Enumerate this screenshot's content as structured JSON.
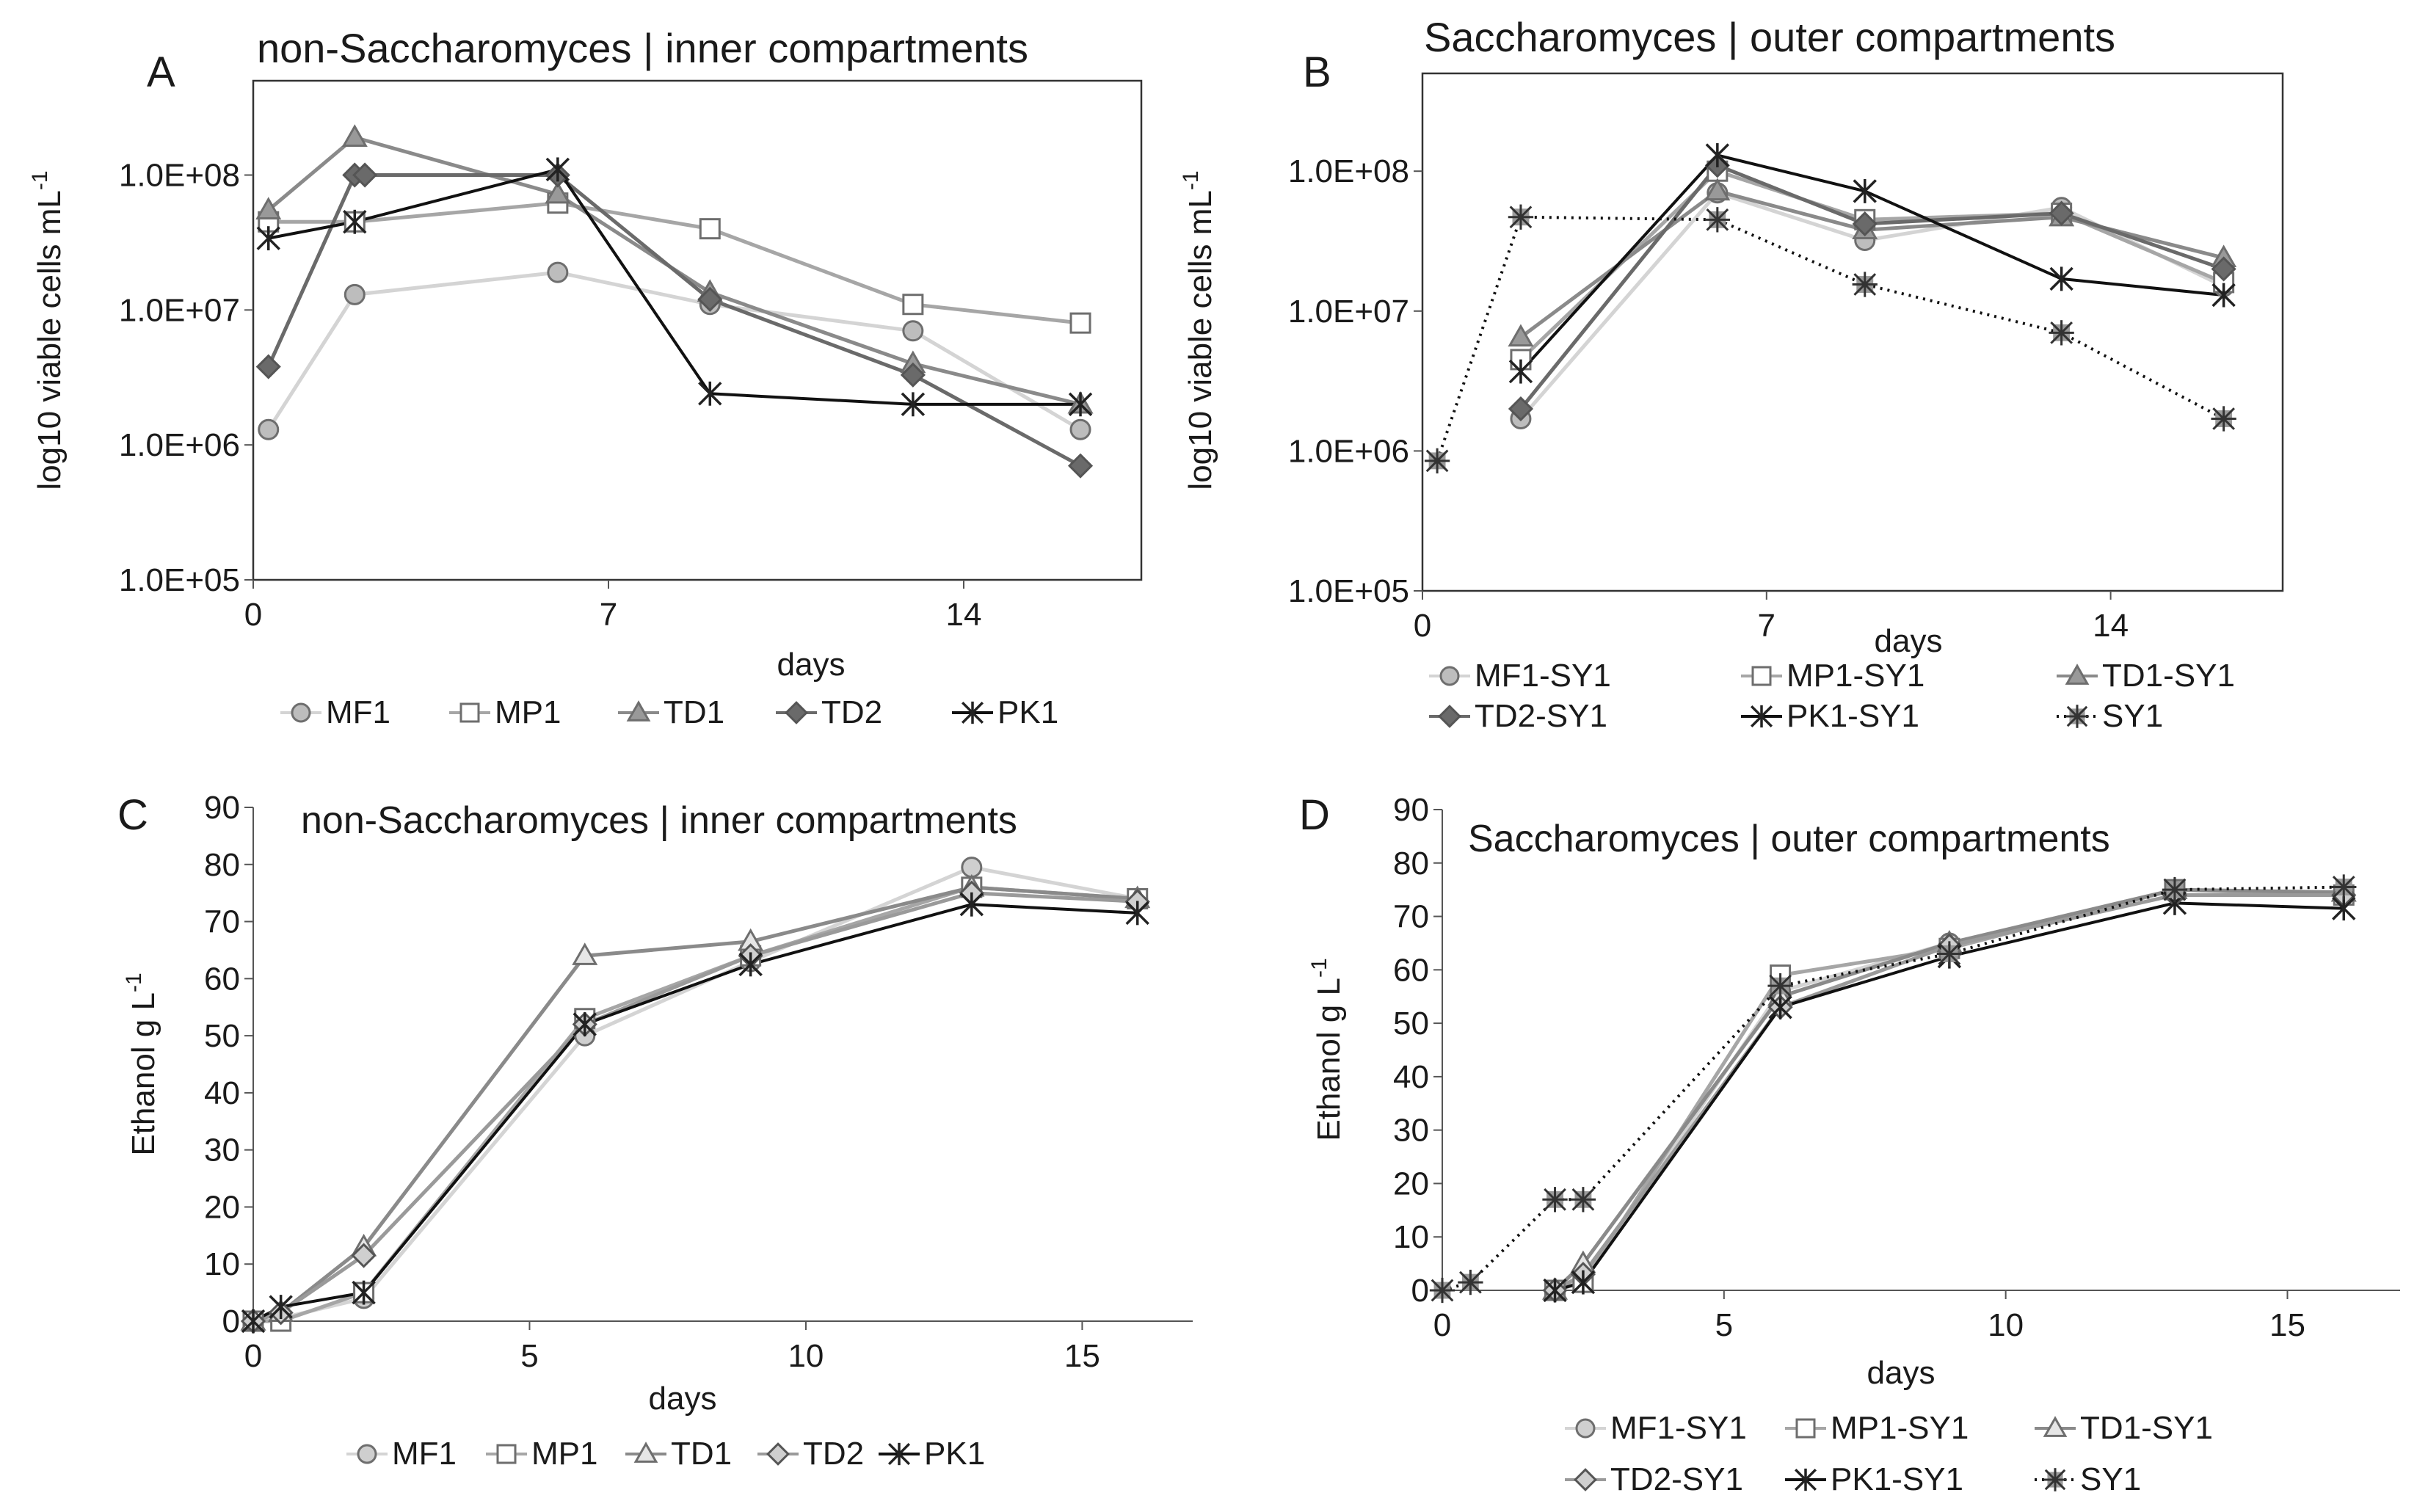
{
  "chart_data": [
    {
      "panel": "A",
      "type": "line",
      "scale": "log",
      "title": "non-Saccharomyces | inner compartments",
      "xlabel": "days",
      "ylabel_main": "log10 viable cells mL",
      "ylabel_sup": "-1",
      "xlim": [
        0,
        17.5
      ],
      "xticks": [
        0,
        7,
        14
      ],
      "ylim": [
        100000,
        500000000
      ],
      "yticks": [
        100000,
        1000000,
        10000000,
        100000000
      ],
      "ytick_labels": [
        "1.0E+05",
        "1.0E+06",
        "1.0E+07",
        "1.0E+08"
      ],
      "legend_cols": 5,
      "series": [
        {
          "name": "MF1",
          "marker": "circle",
          "line": "#d4d4d4",
          "fill": "#bdbdbd",
          "dash": "",
          "x": [
            0.3,
            2,
            6,
            9,
            13,
            16.3
          ],
          "y": [
            1300000,
            13000000,
            19000000,
            11000000,
            7000000,
            1300000
          ]
        },
        {
          "name": "MP1",
          "marker": "square",
          "line": "#a6a6a6",
          "fill": "#ffffff",
          "dash": "",
          "x": [
            0.3,
            2,
            6,
            9,
            13,
            16.3
          ],
          "y": [
            45000000,
            45000000,
            62000000,
            40000000,
            11000000,
            8000000
          ]
        },
        {
          "name": "TD1",
          "marker": "triangle",
          "line": "#8a8a8a",
          "fill": "#999999",
          "dash": "",
          "x": [
            0.3,
            2,
            6,
            9,
            13,
            16.3
          ],
          "y": [
            55000000,
            190000000,
            72000000,
            13500000,
            4000000,
            2000000
          ]
        },
        {
          "name": "TD2",
          "marker": "diamond",
          "line": "#6a6a6a",
          "fill": "#6a6a6a",
          "dash": "",
          "x": [
            0.3,
            2,
            2.2,
            6,
            9,
            13,
            16.3
          ],
          "y": [
            3800000,
            100000000,
            100000000,
            100000000,
            12000000,
            3300000,
            700000
          ]
        },
        {
          "name": "PK1",
          "marker": "star",
          "line": "#111111",
          "fill": "#555555",
          "dash": "",
          "x": [
            0.3,
            2,
            6,
            9,
            13,
            16.3
          ],
          "y": [
            34000000,
            45000000,
            110000000,
            2400000,
            2000000,
            2000000
          ]
        }
      ]
    },
    {
      "panel": "B",
      "type": "line",
      "scale": "log",
      "title": "Saccharomyces | outer compartments",
      "xlabel": "days",
      "ylabel_main": "log10 viable cells mL",
      "ylabel_sup": "-1",
      "xlim": [
        0,
        17.5
      ],
      "xticks": [
        0,
        7,
        14
      ],
      "ylim": [
        100000,
        500000000
      ],
      "yticks": [
        100000,
        1000000,
        10000000,
        100000000
      ],
      "ytick_labels": [
        "1.0E+05",
        "1.0E+06",
        "1.0E+07",
        "1.0E+08"
      ],
      "legend_cols": 3,
      "series": [
        {
          "name": "MF1-SY1",
          "marker": "circle",
          "line": "#d4d4d4",
          "fill": "#bdbdbd",
          "dash": "",
          "x": [
            2,
            6,
            9,
            13,
            16.3
          ],
          "y": [
            1700000,
            70000000,
            32000000,
            55000000,
            15000000
          ]
        },
        {
          "name": "MP1-SY1",
          "marker": "square",
          "line": "#a6a6a6",
          "fill": "#ffffff",
          "dash": "",
          "x": [
            2,
            6,
            9,
            13,
            16.3
          ],
          "y": [
            4500000,
            100000000,
            45000000,
            50000000,
            16000000
          ]
        },
        {
          "name": "TD1-SY1",
          "marker": "triangle",
          "line": "#8a8a8a",
          "fill": "#999999",
          "dash": "",
          "x": [
            2,
            6,
            9,
            13,
            16.3
          ],
          "y": [
            6500000,
            72000000,
            38000000,
            47000000,
            24000000
          ]
        },
        {
          "name": "TD2-SY1",
          "marker": "diamond",
          "line": "#6a6a6a",
          "fill": "#6a6a6a",
          "dash": "",
          "x": [
            2,
            6,
            9,
            13,
            16.3
          ],
          "y": [
            2000000,
            110000000,
            42000000,
            50000000,
            20000000
          ]
        },
        {
          "name": "PK1-SY1",
          "marker": "star",
          "line": "#111111",
          "fill": "#555555",
          "dash": "",
          "x": [
            2,
            6,
            9,
            13,
            16.3
          ],
          "y": [
            3700000,
            130000000,
            72000000,
            17000000,
            13000000
          ]
        },
        {
          "name": "SY1",
          "marker": "asterisk",
          "line": "#111111",
          "fill": "#888888",
          "dash": "3,7",
          "x": [
            0.3,
            2,
            6,
            9,
            13,
            16.3
          ],
          "y": [
            850000,
            47000000,
            45000000,
            15500000,
            7000000,
            1700000
          ]
        }
      ]
    },
    {
      "panel": "C",
      "type": "line",
      "scale": "linear",
      "title": "non-Saccharomyces | inner compartments",
      "xlabel": "days",
      "ylabel_main": "Ethanol g L",
      "ylabel_sup": "-1",
      "xlim": [
        0,
        17
      ],
      "xticks": [
        0,
        5,
        10,
        15
      ],
      "ylim": [
        0,
        90
      ],
      "yticks": [
        0,
        10,
        20,
        30,
        40,
        50,
        60,
        70,
        80,
        90
      ],
      "legend_cols": 5,
      "series": [
        {
          "name": "MF1",
          "marker": "circle",
          "line": "#d4d4d4",
          "fill": "#cfcfcf",
          "dash": "",
          "x": [
            0,
            0.5,
            2,
            6,
            9,
            13,
            16
          ],
          "y": [
            0,
            0.5,
            4,
            50,
            63,
            79.5,
            74
          ]
        },
        {
          "name": "MP1",
          "marker": "square",
          "line": "#a6a6a6",
          "fill": "#ffffff",
          "dash": "",
          "x": [
            0,
            0.5,
            2,
            6,
            9,
            13,
            16
          ],
          "y": [
            0,
            0,
            5,
            53,
            64,
            76,
            74
          ]
        },
        {
          "name": "TD1",
          "marker": "triangle",
          "line": "#8a8a8a",
          "fill": "#e6e6e6",
          "dash": "",
          "x": [
            0,
            0.5,
            2,
            6,
            9,
            13,
            16
          ],
          "y": [
            0,
            1.5,
            13,
            64,
            66.5,
            76,
            74
          ]
        },
        {
          "name": "TD2",
          "marker": "diamond",
          "line": "#9a9a9a",
          "fill": "#cfcfcf",
          "dash": "",
          "x": [
            0,
            0.5,
            2,
            6,
            9,
            13,
            16
          ],
          "y": [
            0,
            1.5,
            11.5,
            52,
            64,
            75,
            73.5
          ]
        },
        {
          "name": "PK1",
          "marker": "star",
          "line": "#111111",
          "fill": "#555555",
          "dash": "",
          "x": [
            0,
            0.5,
            2,
            6,
            9,
            13,
            16
          ],
          "y": [
            0,
            2.5,
            5,
            52,
            62.5,
            73,
            71.5
          ]
        }
      ]
    },
    {
      "panel": "D",
      "type": "line",
      "scale": "linear",
      "title": "Saccharomyces | outer compartments",
      "xlabel": "days",
      "ylabel_main": "Ethanol g L",
      "ylabel_sup": "-1",
      "xlim": [
        0,
        17
      ],
      "xticks": [
        0,
        5,
        10,
        15
      ],
      "ylim": [
        0,
        90
      ],
      "yticks": [
        0,
        10,
        20,
        30,
        40,
        50,
        60,
        70,
        80,
        90
      ],
      "legend_cols": 3,
      "series": [
        {
          "name": "MF1-SY1",
          "marker": "circle",
          "line": "#d4d4d4",
          "fill": "#cfcfcf",
          "dash": "",
          "x": [
            2,
            2.5,
            6,
            9,
            13,
            16
          ],
          "y": [
            0,
            2,
            56,
            65,
            75,
            74
          ]
        },
        {
          "name": "MP1-SY1",
          "marker": "square",
          "line": "#a6a6a6",
          "fill": "#ffffff",
          "dash": "",
          "x": [
            2,
            2.5,
            6,
            9,
            13,
            16
          ],
          "y": [
            0,
            1.5,
            59,
            64,
            75,
            74
          ]
        },
        {
          "name": "TD1-SY1",
          "marker": "triangle",
          "line": "#8a8a8a",
          "fill": "#e6e6e6",
          "dash": "",
          "x": [
            2,
            2.5,
            6,
            9,
            13,
            16
          ],
          "y": [
            0,
            5,
            55,
            65,
            75,
            74.5
          ]
        },
        {
          "name": "TD2-SY1",
          "marker": "diamond",
          "line": "#9a9a9a",
          "fill": "#cfcfcf",
          "dash": "",
          "x": [
            2,
            2.5,
            6,
            9,
            13,
            16
          ],
          "y": [
            0,
            3,
            53,
            64.5,
            74,
            74
          ]
        },
        {
          "name": "PK1-SY1",
          "marker": "star",
          "line": "#111111",
          "fill": "#555555",
          "dash": "",
          "x": [
            2,
            2.5,
            6,
            9,
            13,
            16
          ],
          "y": [
            0,
            1.5,
            53,
            62.5,
            72.5,
            71.5
          ]
        },
        {
          "name": "SY1",
          "marker": "asterisk",
          "line": "#111111",
          "fill": "#888888",
          "dash": "3,7",
          "x": [
            0,
            0.5,
            2,
            2.5,
            6,
            9,
            13,
            16
          ],
          "y": [
            0,
            1.5,
            17,
            17,
            57,
            63,
            75,
            75.5
          ]
        }
      ]
    }
  ]
}
